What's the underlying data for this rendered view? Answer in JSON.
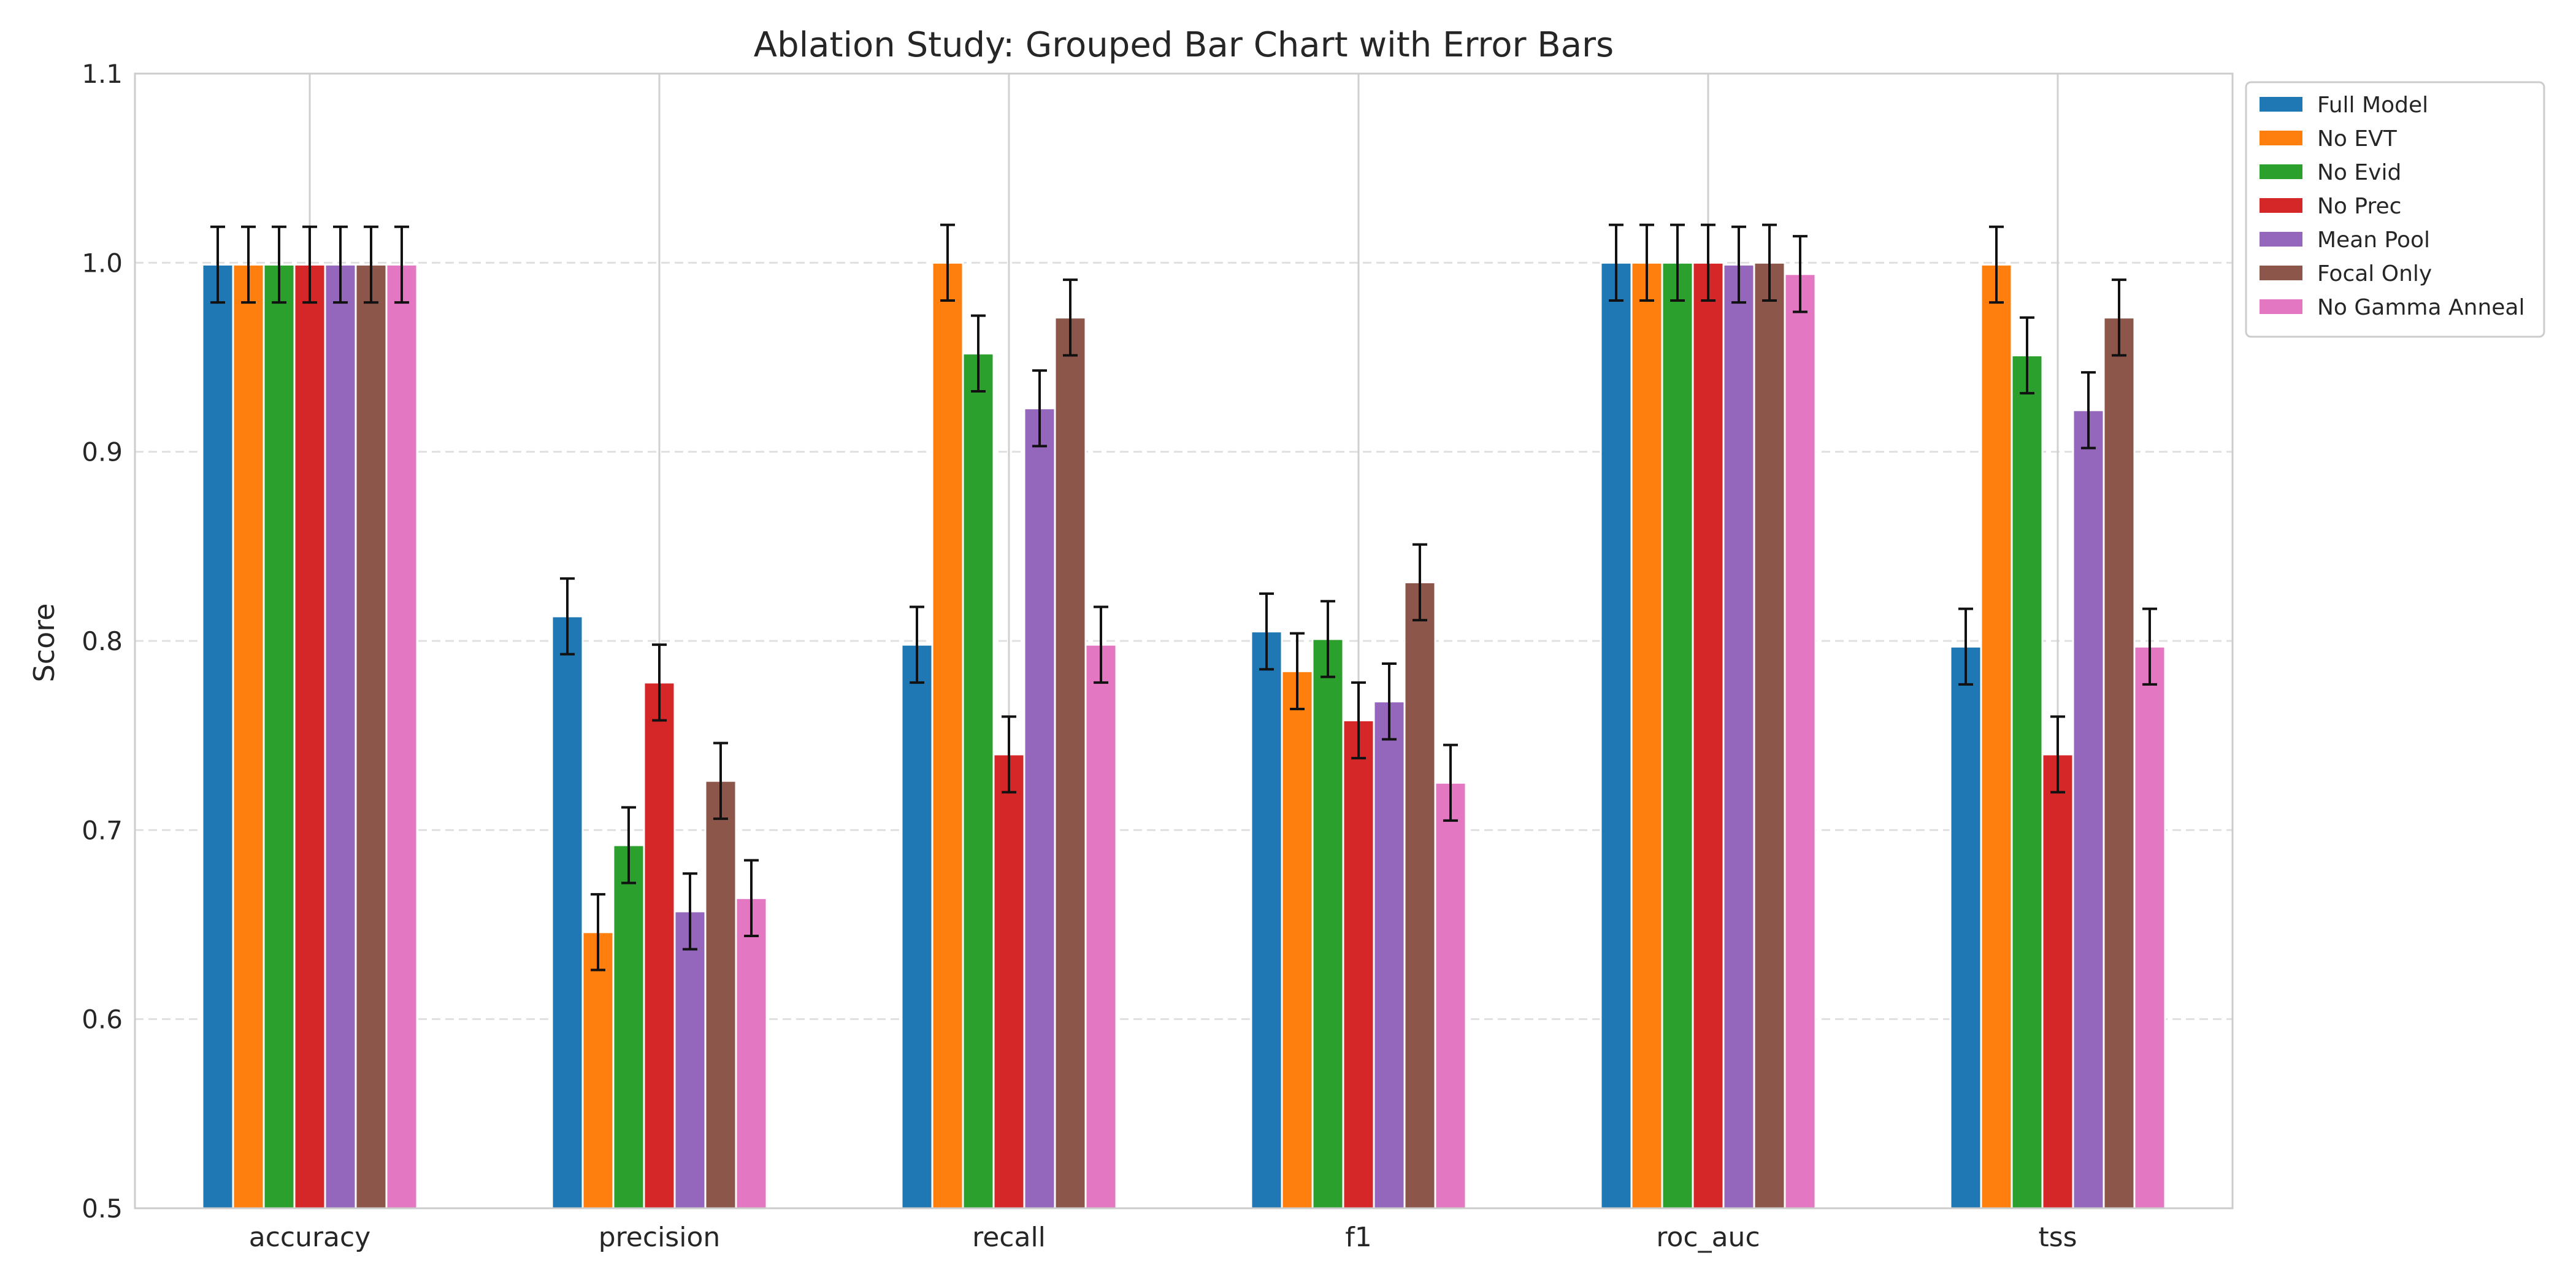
{
  "chart_data": {
    "type": "bar",
    "title": "Ablation Study: Grouped Bar Chart with Error Bars",
    "xlabel": "",
    "ylabel": "Score",
    "ylim": [
      0.5,
      1.1
    ],
    "yticks": [
      "0.5",
      "0.6",
      "0.7",
      "0.8",
      "0.9",
      "1.0",
      "1.1"
    ],
    "grid": "y-dashed, x-solid",
    "legend_position": "outside top-right",
    "categories": [
      "accuracy",
      "precision",
      "recall",
      "f1",
      "roc_auc",
      "tss"
    ],
    "series": [
      {
        "name": "Full Model",
        "color": "#1f77b4",
        "values": [
          0.999,
          0.813,
          0.798,
          0.805,
          1.0,
          0.797
        ],
        "errors": [
          0.02,
          0.02,
          0.02,
          0.02,
          0.02,
          0.02
        ]
      },
      {
        "name": "No EVT",
        "color": "#ff7f0e",
        "values": [
          0.999,
          0.646,
          1.0,
          0.784,
          1.0,
          0.999
        ],
        "errors": [
          0.02,
          0.02,
          0.02,
          0.02,
          0.02,
          0.02
        ]
      },
      {
        "name": "No Evid",
        "color": "#2ca02c",
        "values": [
          0.999,
          0.692,
          0.952,
          0.801,
          1.0,
          0.951
        ],
        "errors": [
          0.02,
          0.02,
          0.02,
          0.02,
          0.02,
          0.02
        ]
      },
      {
        "name": "No Prec",
        "color": "#d62728",
        "values": [
          0.999,
          0.778,
          0.74,
          0.758,
          1.0,
          0.74
        ],
        "errors": [
          0.02,
          0.02,
          0.02,
          0.02,
          0.02,
          0.02
        ]
      },
      {
        "name": "Mean Pool",
        "color": "#9467bd",
        "values": [
          0.999,
          0.657,
          0.923,
          0.768,
          0.999,
          0.922
        ],
        "errors": [
          0.02,
          0.02,
          0.02,
          0.02,
          0.02,
          0.02
        ]
      },
      {
        "name": "Focal Only",
        "color": "#8c564b",
        "values": [
          0.999,
          0.726,
          0.971,
          0.831,
          1.0,
          0.971
        ],
        "errors": [
          0.02,
          0.02,
          0.02,
          0.02,
          0.02,
          0.02
        ]
      },
      {
        "name": "No Gamma Anneal",
        "color": "#e377c2",
        "values": [
          0.999,
          0.664,
          0.798,
          0.725,
          0.994,
          0.797
        ],
        "errors": [
          0.02,
          0.02,
          0.02,
          0.02,
          0.02,
          0.02
        ]
      }
    ]
  }
}
